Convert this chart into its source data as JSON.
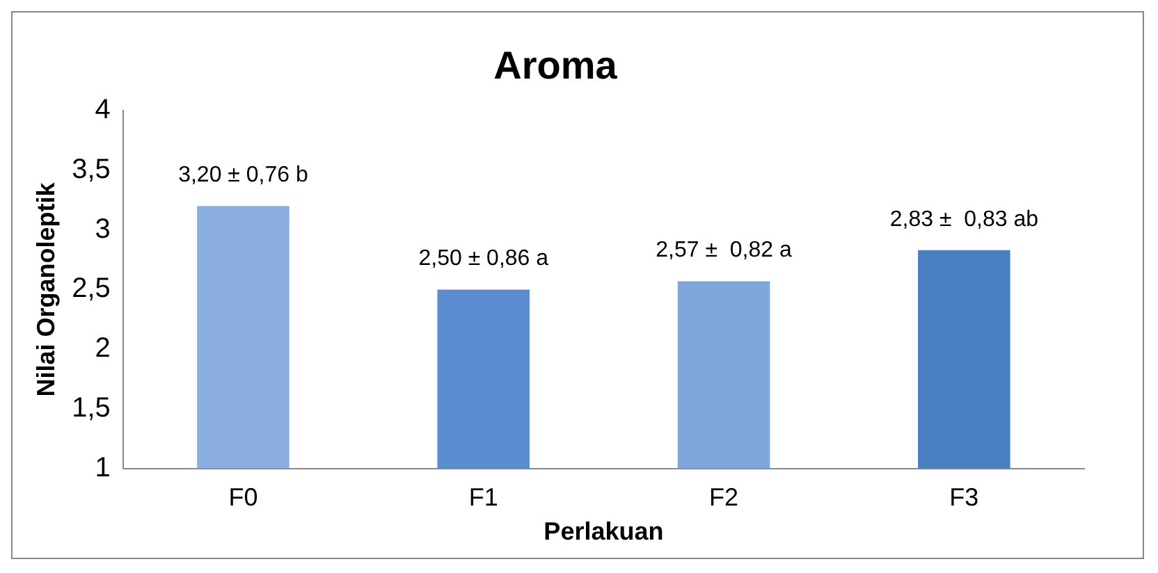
{
  "chart_data": {
    "type": "bar",
    "title": "Aroma",
    "xlabel": "Perlakuan",
    "ylabel": "Nilai Organoleptik",
    "categories": [
      "F0",
      "F1",
      "F2",
      "F3"
    ],
    "values": [
      3.2,
      2.5,
      2.57,
      2.83
    ],
    "value_labels": [
      "3,20 ± 0,76 b",
      "2,50 ± 0,86 a",
      "2,57 ±  0,82 a",
      "2,83 ±  0,83 ab"
    ],
    "colors": [
      "#8aaee0",
      "#5b8ccf",
      "#7ea6dc",
      "#4a7fc4"
    ],
    "ylim": [
      1,
      4
    ],
    "yticks": [
      1,
      {
        "value": 1.5,
        "label": "1,5"
      },
      2,
      {
        "value": 2.5,
        "label": "2,5"
      },
      3,
      {
        "value": 3.5,
        "label": "3,5"
      },
      4
    ],
    "grid": false,
    "legend": false
  }
}
